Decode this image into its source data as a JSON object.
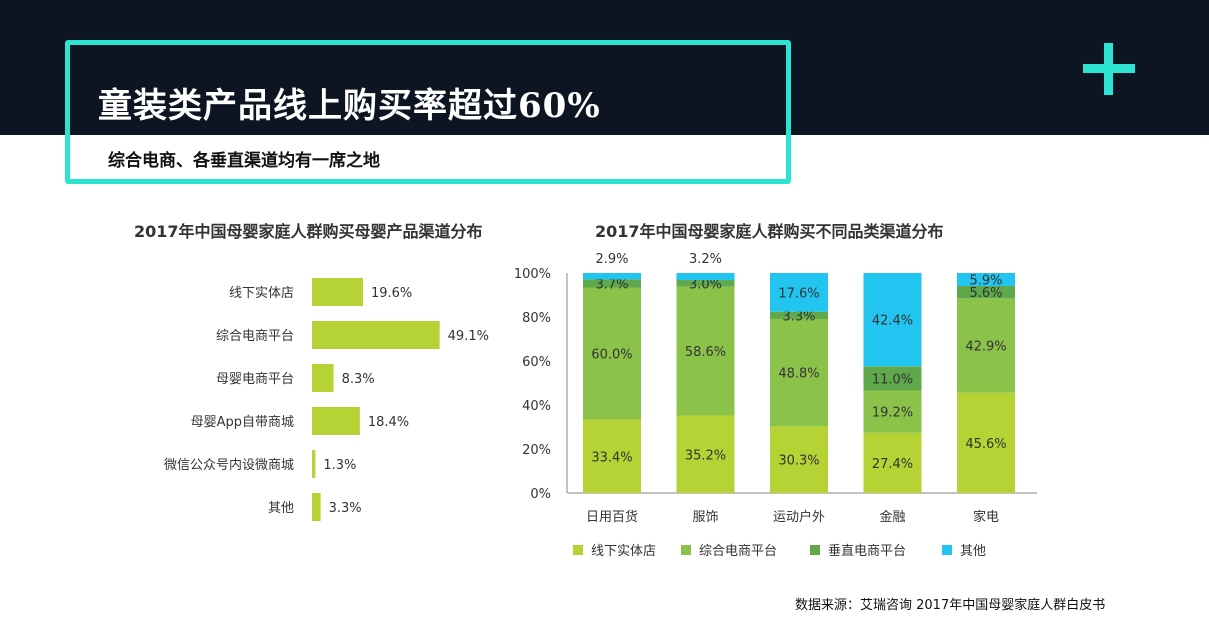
{
  "header": {
    "title": "童装类产品线上购买率超过60%",
    "subtitle": "综合电商、各垂直渠道均有一席之地"
  },
  "colors": {
    "accent": "#2de3d2",
    "banner": "#0d1522"
  },
  "source": "数据来源：艾瑞咨询  2017年中国母婴家庭人群白皮书",
  "chart_data": [
    {
      "type": "bar",
      "orientation": "horizontal",
      "title": "2017年中国母婴家庭人群购买母婴产品渠道分布",
      "categories": [
        "线下实体店",
        "综合电商平台",
        "母婴电商平台",
        "母婴App自带商城",
        "微信公众号内设微商城",
        "其他"
      ],
      "values": [
        19.6,
        49.1,
        8.3,
        18.4,
        1.3,
        3.3
      ],
      "labels": [
        "19.6%",
        "49.1%",
        "8.3%",
        "18.4%",
        "1.3%",
        "3.3%"
      ],
      "color": "#b5d334"
    },
    {
      "type": "bar",
      "stacked": true,
      "title": "2017年中国母婴家庭人群购买不同品类渠道分布",
      "categories": [
        "日用百货",
        "服饰",
        "运动户外",
        "金融",
        "家电"
      ],
      "yticks": [
        "0%",
        "20%",
        "40%",
        "60%",
        "80%",
        "100%"
      ],
      "ylim": [
        0,
        100
      ],
      "legend_position": "bottom",
      "series": [
        {
          "name": "线下实体店",
          "color": "#b5d334",
          "values": [
            33.4,
            35.2,
            30.3,
            27.4,
            45.6
          ],
          "labels": [
            "33.4%",
            "35.2%",
            "30.3%",
            "27.4%",
            "45.6%"
          ]
        },
        {
          "name": "综合电商平台",
          "color": "#8bc34a",
          "values": [
            60.0,
            58.6,
            48.8,
            19.2,
            42.9
          ],
          "labels": [
            "60.0%",
            "58.6%",
            "48.8%",
            "19.2%",
            "42.9%"
          ]
        },
        {
          "name": "垂直电商平台",
          "color": "#5fa84c",
          "values": [
            3.7,
            3.0,
            3.3,
            11.0,
            5.6
          ],
          "labels": [
            "3.7%",
            "3.0%",
            "3.3%",
            "11.0%",
            "5.6%"
          ]
        },
        {
          "name": "其他",
          "color": "#22c5f0",
          "values": [
            2.9,
            3.2,
            17.6,
            42.4,
            5.9
          ],
          "labels": [
            "2.9%",
            "3.2%",
            "17.6%",
            "42.4%",
            "5.9%"
          ]
        }
      ]
    }
  ]
}
